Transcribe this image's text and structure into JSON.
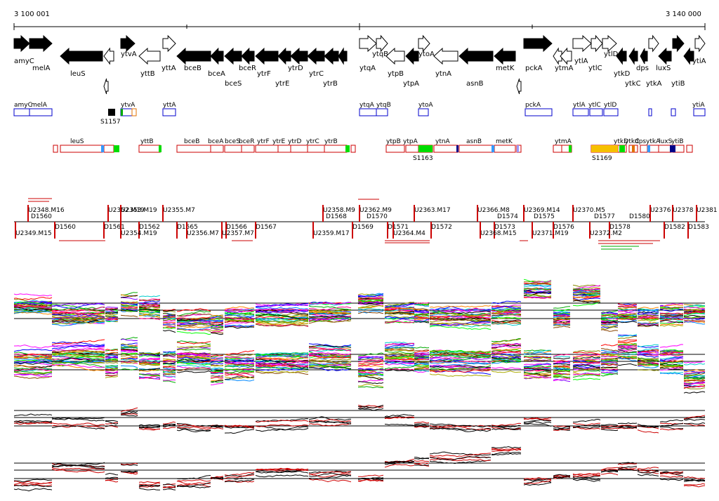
{
  "coords": {
    "left_label": "3 100 001",
    "right_label": "3 140 000"
  },
  "genes_top": [
    "amyC",
    "melA",
    "leuS",
    "ytvA",
    "yttB",
    "yttA",
    "bceB",
    "bceA",
    "bceS",
    "bceR",
    "ytrF",
    "ytrE",
    "ytrD",
    "ytrC",
    "ytrB",
    "ytqA",
    "ytqB",
    "ytpB",
    "ytpA",
    "ytoA",
    "ytnA",
    "asnB",
    "metK",
    "pckA",
    "ytmA",
    "ytlA",
    "ytlC",
    "ytlD",
    "ytkD",
    "ytkC",
    "dps",
    "ytkA",
    "luxS",
    "ytiB",
    "ytiA"
  ],
  "features_row1": [
    "amyC",
    "melA",
    "ytvA",
    "yttA",
    "ytqA",
    "ytqB",
    "ytoA",
    "pckA",
    "ytlA",
    "ytlC",
    "ytlD",
    "ytiA"
  ],
  "feature_s1157": "S1157",
  "features_row2": [
    "leuS",
    "yttB",
    "bceB",
    "bceA",
    "bceS",
    "bceR",
    "ytrF",
    "ytrE",
    "ytrD",
    "ytrC",
    "ytrB",
    "ytpB",
    "ytpA",
    "ytnA",
    "asnB",
    "metK",
    "ytmA",
    "ytkD",
    "ytkC",
    "dps",
    "ytkA",
    "luxS",
    "ytiB"
  ],
  "feature_s1163": "S1163",
  "feature_s1169": "S1169",
  "segments_upper": [
    "U2348.M16",
    "U2352.M19",
    "U2353.M19",
    "U2355.M7",
    "U2358.M9",
    "U2362.M9",
    "U2363.M17",
    "U2366.M8",
    "U2369.M14",
    "U2370.M5",
    "U2376",
    "U2378",
    "U2381"
  ],
  "segments_mid": [
    "D1560",
    "D1568",
    "D1570",
    "D1574",
    "D1575",
    "D1577",
    "D1580"
  ],
  "segments_lower": [
    "U2349.M15",
    "D1560",
    "D1561",
    "D1562",
    "D1565",
    "D1566",
    "D1567",
    "D1569",
    "D1571",
    "D1572",
    "D1573",
    "D1576",
    "D1578",
    "D1582",
    "D1583",
    "U2354.M19",
    "U2356.M7",
    "U2357.M7",
    "U2359.M17",
    "U2364.M4",
    "U2368.M15",
    "U2371.M19",
    "U2372.M2"
  ]
}
